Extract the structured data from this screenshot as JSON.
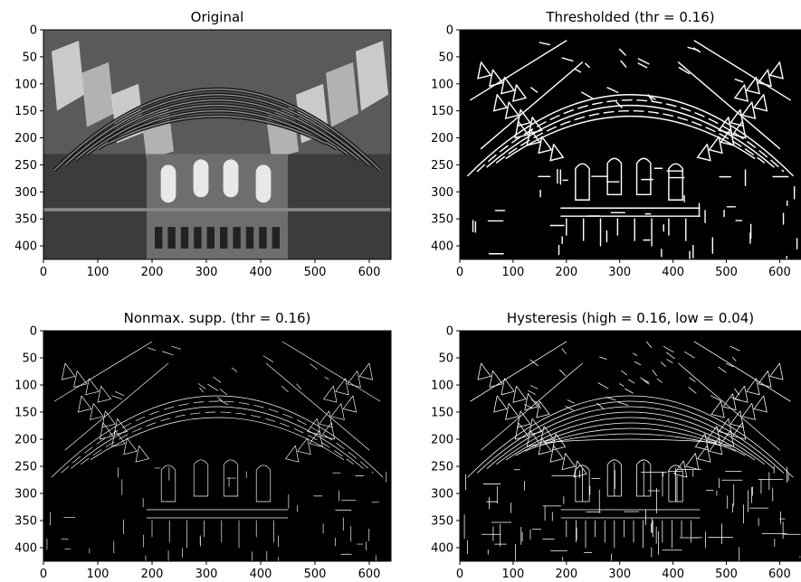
{
  "figure": {
    "panels": [
      {
        "id": "original",
        "title": "Original",
        "kind": "grayscale-photo",
        "x_ticks": [
          "0",
          "100",
          "200",
          "300",
          "400",
          "500",
          "600"
        ],
        "y_ticks": [
          "0",
          "50",
          "100",
          "150",
          "200",
          "250",
          "300",
          "350",
          "400"
        ]
      },
      {
        "id": "thresholded",
        "title": "Thresholded (thr = 0.16)",
        "kind": "edge-map",
        "x_ticks": [
          "0",
          "100",
          "200",
          "300",
          "400",
          "500",
          "600"
        ],
        "y_ticks": [
          "0",
          "50",
          "100",
          "150",
          "200",
          "250",
          "300",
          "350",
          "400"
        ]
      },
      {
        "id": "nonmax",
        "title": "Nonmax. supp. (thr = 0.16)",
        "kind": "edge-map-thin",
        "x_ticks": [
          "0",
          "100",
          "200",
          "300",
          "400",
          "500",
          "600"
        ],
        "y_ticks": [
          "0",
          "50",
          "100",
          "150",
          "200",
          "250",
          "300",
          "350",
          "400"
        ]
      },
      {
        "id": "hysteresis",
        "title": "Hysteresis (high = 0.16, low = 0.04)",
        "kind": "edge-map-dense",
        "x_ticks": [
          "0",
          "100",
          "200",
          "300",
          "400",
          "500",
          "600"
        ],
        "y_ticks": [
          "0",
          "50",
          "100",
          "150",
          "200",
          "250",
          "300",
          "350",
          "400"
        ]
      }
    ],
    "axis_range": {
      "x": [
        0,
        640
      ],
      "y": [
        0,
        425
      ]
    }
  }
}
